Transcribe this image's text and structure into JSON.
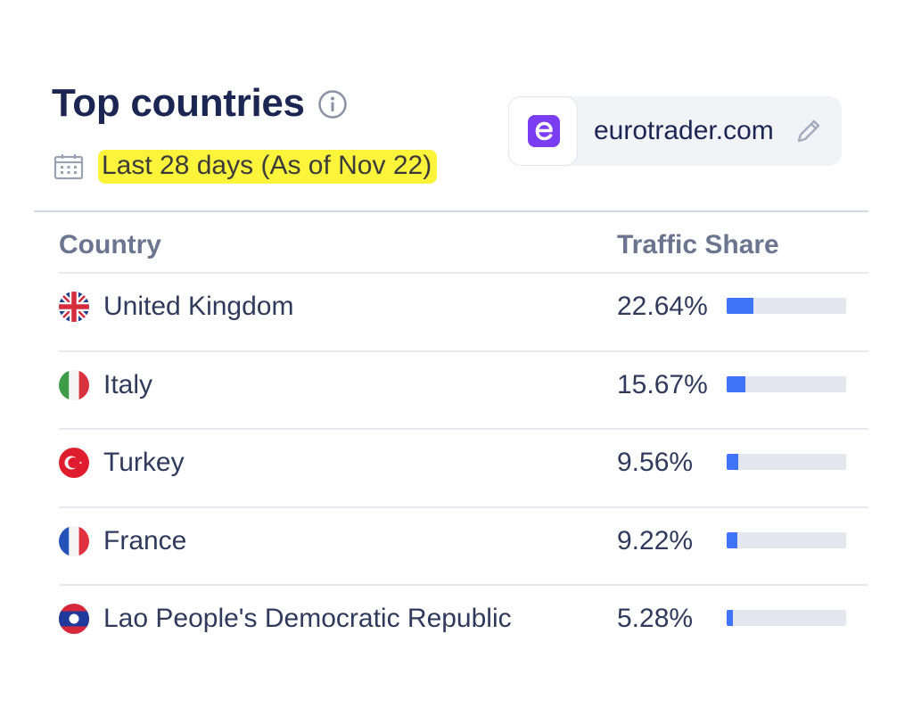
{
  "header": {
    "title": "Top countries",
    "date_range": "Last 28 days (As of Nov 22)"
  },
  "site": {
    "domain": "eurotrader.com",
    "logo_letter": "e",
    "logo_color": "#7b3df2"
  },
  "table": {
    "columns": [
      "Country",
      "Traffic Share"
    ],
    "rows": [
      {
        "country": "United Kingdom",
        "flag": "gb-flag-icon",
        "share_label": "22.64%",
        "share": 22.64
      },
      {
        "country": "Italy",
        "flag": "it-flag-icon",
        "share_label": "15.67%",
        "share": 15.67
      },
      {
        "country": "Turkey",
        "flag": "tr-flag-icon",
        "share_label": "9.56%",
        "share": 9.56
      },
      {
        "country": "France",
        "flag": "fr-flag-icon",
        "share_label": "9.22%",
        "share": 9.22
      },
      {
        "country": "Lao People's Democratic Republic",
        "flag": "la-flag-icon",
        "share_label": "5.28%",
        "share": 5.28
      }
    ]
  },
  "colors": {
    "title": "#1b2653",
    "highlight": "#fbf43a",
    "bar_fill": "#3f73f8",
    "bar_track": "#e4e7ef"
  }
}
